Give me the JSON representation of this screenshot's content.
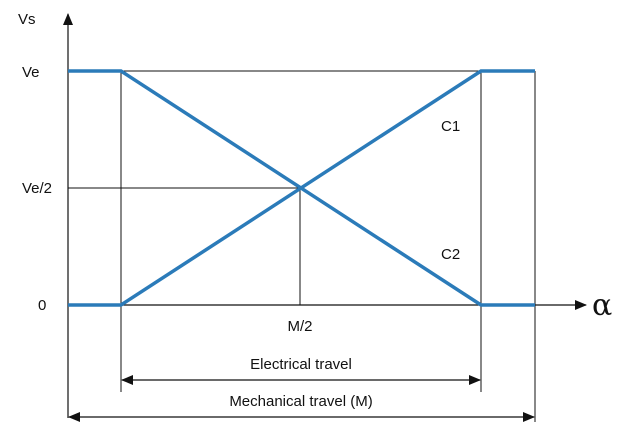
{
  "axes": {
    "y_label": "Vs",
    "x_label": "α",
    "y_ticks": [
      "Ve",
      "Ve/2",
      "0"
    ],
    "x_tick_mid": "M/2"
  },
  "curves": {
    "c1_label": "C1",
    "c2_label": "C2",
    "color": "#2b7bb9"
  },
  "dimensions": {
    "electrical": "Electrical travel",
    "mechanical": "Mechanical travel (M)"
  }
}
